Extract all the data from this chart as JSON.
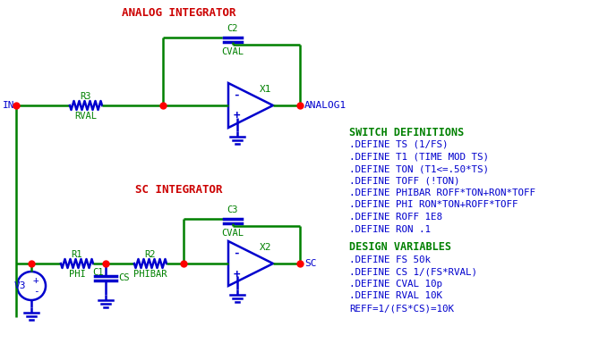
{
  "bg_color": "#ffffff",
  "wire_color_green": "#008000",
  "wire_color_blue": "#0000cd",
  "dot_color": "#ff0000",
  "label_color_green": "#008000",
  "label_color_blue": "#0000cd",
  "title_color": "#cc0000",
  "title1": "ANALOG INTEGRATOR",
  "title2": "SC INTEGRATOR",
  "switch_header": "SWITCH DEFINITIONS",
  "switch_lines": [
    ".DEFINE TS (1/FS)",
    ".DEFINE T1 (TIME MOD TS)",
    ".DEFINE TON (T1<=.50*TS)",
    ".DEFINE TOFF (!TON)",
    ".DEFINE PHIBAR ROFF*TON+RON*TOFF",
    ".DEFINE PHI RON*TON+ROFF*TOFF",
    ".DEFINE ROFF 1E8",
    ".DEFINE RON .1"
  ],
  "design_header": "DESIGN VARIABLES",
  "design_lines": [
    ".DEFINE FS 50k",
    ".DEFINE CS 1/(FS*RVAL)",
    ".DEFINE CVAL 10p",
    ".DEFINE RVAL 10K",
    "REFF=1/(FS*CS)=10K"
  ]
}
